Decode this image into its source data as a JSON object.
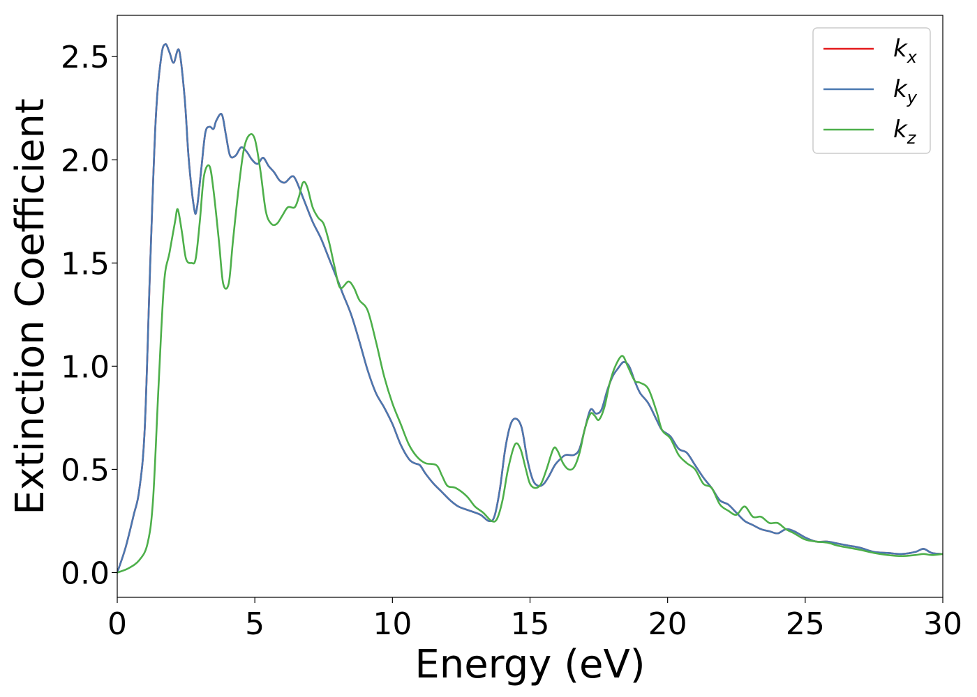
{
  "chart_data": {
    "type": "line",
    "title": "",
    "xlabel": "Energy (eV)",
    "ylabel": "Extinction Coefficient",
    "xlim": [
      0,
      30
    ],
    "ylim": [
      -0.12,
      2.7
    ],
    "xticks": [
      0,
      5,
      10,
      15,
      20,
      25,
      30
    ],
    "xtick_labels": [
      "0",
      "5",
      "10",
      "15",
      "20",
      "25",
      "30"
    ],
    "yticks": [
      0.0,
      0.5,
      1.0,
      1.5,
      2.0,
      2.5
    ],
    "ytick_labels": [
      "0.0",
      "0.5",
      "1.0",
      "1.5",
      "2.0",
      "2.5"
    ],
    "grid": false,
    "legend_position": "top-right",
    "series": [
      {
        "name": "k_x",
        "legend_base": "k",
        "legend_sub": "x",
        "color": "#e41a1c",
        "x": [
          0,
          0.3,
          0.6,
          0.8,
          1.0,
          1.2,
          1.4,
          1.6,
          1.75,
          1.9,
          2.05,
          2.25,
          2.45,
          2.6,
          2.8,
          2.9,
          3.05,
          3.2,
          3.35,
          3.5,
          3.6,
          3.8,
          3.95,
          4.1,
          4.3,
          4.5,
          4.7,
          4.9,
          5.1,
          5.3,
          5.5,
          5.7,
          5.9,
          6.1,
          6.35,
          6.5,
          6.8,
          7.1,
          7.4,
          7.7,
          8.0,
          8.2,
          8.5,
          8.8,
          9.1,
          9.4,
          9.7,
          10.0,
          10.3,
          10.6,
          10.8,
          11.0,
          11.2,
          11.5,
          11.8,
          12.1,
          12.4,
          12.8,
          13.2,
          13.5,
          13.7,
          13.9,
          14.1,
          14.3,
          14.5,
          14.7,
          14.9,
          15.1,
          15.3,
          15.5,
          15.7,
          15.9,
          16.1,
          16.3,
          16.6,
          16.8,
          17.0,
          17.2,
          17.4,
          17.6,
          17.8,
          18.0,
          18.2,
          18.4,
          18.6,
          18.8,
          19.0,
          19.3,
          19.6,
          19.8,
          20.1,
          20.4,
          20.7,
          21.0,
          21.3,
          21.6,
          21.9,
          22.2,
          22.5,
          22.8,
          23.1,
          23.4,
          23.7,
          24.0,
          24.3,
          24.6,
          25.0,
          25.4,
          25.8,
          26.2,
          26.6,
          27.0,
          27.5,
          28.0,
          28.5,
          29.0,
          29.3,
          29.6,
          30.0
        ],
        "y": [
          0.0,
          0.12,
          0.28,
          0.4,
          0.7,
          1.5,
          2.2,
          2.5,
          2.56,
          2.52,
          2.47,
          2.53,
          2.3,
          2.0,
          1.76,
          1.77,
          1.95,
          2.13,
          2.16,
          2.15,
          2.19,
          2.22,
          2.12,
          2.02,
          2.02,
          2.06,
          2.04,
          2.0,
          1.98,
          2.01,
          1.97,
          1.94,
          1.9,
          1.89,
          1.92,
          1.9,
          1.8,
          1.7,
          1.62,
          1.52,
          1.42,
          1.35,
          1.25,
          1.12,
          0.98,
          0.87,
          0.8,
          0.72,
          0.62,
          0.55,
          0.53,
          0.52,
          0.48,
          0.43,
          0.39,
          0.35,
          0.32,
          0.3,
          0.28,
          0.25,
          0.27,
          0.4,
          0.6,
          0.72,
          0.745,
          0.7,
          0.55,
          0.45,
          0.42,
          0.43,
          0.47,
          0.52,
          0.55,
          0.57,
          0.57,
          0.6,
          0.7,
          0.79,
          0.77,
          0.79,
          0.88,
          0.95,
          0.99,
          1.02,
          1.0,
          0.93,
          0.87,
          0.82,
          0.74,
          0.69,
          0.66,
          0.6,
          0.58,
          0.52,
          0.46,
          0.41,
          0.35,
          0.33,
          0.29,
          0.25,
          0.23,
          0.21,
          0.2,
          0.19,
          0.21,
          0.2,
          0.17,
          0.15,
          0.15,
          0.14,
          0.13,
          0.12,
          0.1,
          0.095,
          0.09,
          0.1,
          0.115,
          0.095,
          0.09
        ]
      },
      {
        "name": "k_y",
        "legend_base": "k",
        "legend_sub": "y",
        "color": "#4a78b0",
        "x": [
          0,
          0.3,
          0.6,
          0.8,
          1.0,
          1.2,
          1.4,
          1.6,
          1.75,
          1.9,
          2.05,
          2.25,
          2.45,
          2.6,
          2.8,
          2.9,
          3.05,
          3.2,
          3.35,
          3.5,
          3.6,
          3.8,
          3.95,
          4.1,
          4.3,
          4.5,
          4.7,
          4.9,
          5.1,
          5.3,
          5.5,
          5.7,
          5.9,
          6.1,
          6.35,
          6.5,
          6.8,
          7.1,
          7.4,
          7.7,
          8.0,
          8.2,
          8.5,
          8.8,
          9.1,
          9.4,
          9.7,
          10.0,
          10.3,
          10.6,
          10.8,
          11.0,
          11.2,
          11.5,
          11.8,
          12.1,
          12.4,
          12.8,
          13.2,
          13.5,
          13.7,
          13.9,
          14.1,
          14.3,
          14.5,
          14.7,
          14.9,
          15.1,
          15.3,
          15.5,
          15.7,
          15.9,
          16.1,
          16.3,
          16.6,
          16.8,
          17.0,
          17.2,
          17.4,
          17.6,
          17.8,
          18.0,
          18.2,
          18.4,
          18.6,
          18.8,
          19.0,
          19.3,
          19.6,
          19.8,
          20.1,
          20.4,
          20.7,
          21.0,
          21.3,
          21.6,
          21.9,
          22.2,
          22.5,
          22.8,
          23.1,
          23.4,
          23.7,
          24.0,
          24.3,
          24.6,
          25.0,
          25.4,
          25.8,
          26.2,
          26.6,
          27.0,
          27.5,
          28.0,
          28.5,
          29.0,
          29.3,
          29.6,
          30.0
        ],
        "y": [
          0.0,
          0.12,
          0.28,
          0.4,
          0.7,
          1.5,
          2.2,
          2.5,
          2.56,
          2.52,
          2.47,
          2.53,
          2.3,
          2.0,
          1.76,
          1.77,
          1.95,
          2.13,
          2.16,
          2.15,
          2.19,
          2.22,
          2.12,
          2.02,
          2.02,
          2.06,
          2.04,
          2.0,
          1.98,
          2.01,
          1.97,
          1.94,
          1.9,
          1.89,
          1.92,
          1.9,
          1.8,
          1.7,
          1.62,
          1.52,
          1.42,
          1.35,
          1.25,
          1.12,
          0.98,
          0.87,
          0.8,
          0.72,
          0.62,
          0.55,
          0.53,
          0.52,
          0.48,
          0.43,
          0.39,
          0.35,
          0.32,
          0.3,
          0.28,
          0.25,
          0.27,
          0.4,
          0.6,
          0.72,
          0.745,
          0.7,
          0.55,
          0.45,
          0.42,
          0.43,
          0.47,
          0.52,
          0.55,
          0.57,
          0.57,
          0.6,
          0.7,
          0.79,
          0.77,
          0.79,
          0.88,
          0.95,
          0.99,
          1.02,
          1.0,
          0.93,
          0.87,
          0.82,
          0.74,
          0.69,
          0.66,
          0.6,
          0.58,
          0.52,
          0.46,
          0.41,
          0.35,
          0.33,
          0.29,
          0.25,
          0.23,
          0.21,
          0.2,
          0.19,
          0.21,
          0.2,
          0.17,
          0.15,
          0.15,
          0.14,
          0.13,
          0.12,
          0.1,
          0.095,
          0.09,
          0.1,
          0.115,
          0.095,
          0.09
        ]
      },
      {
        "name": "k_z",
        "legend_base": "k",
        "legend_sub": "z",
        "color": "#4daf4a",
        "x": [
          0,
          0.4,
          0.8,
          1.1,
          1.3,
          1.5,
          1.7,
          1.9,
          2.1,
          2.2,
          2.35,
          2.5,
          2.7,
          2.85,
          3.0,
          3.15,
          3.35,
          3.5,
          3.7,
          3.85,
          4.05,
          4.2,
          4.4,
          4.6,
          4.8,
          5.0,
          5.2,
          5.4,
          5.6,
          5.8,
          6.0,
          6.2,
          6.45,
          6.6,
          6.75,
          6.9,
          7.1,
          7.3,
          7.5,
          7.7,
          7.9,
          8.1,
          8.4,
          8.6,
          8.8,
          9.1,
          9.4,
          9.7,
          10.0,
          10.3,
          10.6,
          10.9,
          11.2,
          11.6,
          11.8,
          12.0,
          12.3,
          12.7,
          13.0,
          13.3,
          13.6,
          13.8,
          14.0,
          14.2,
          14.45,
          14.65,
          14.85,
          15.0,
          15.2,
          15.4,
          15.6,
          15.85,
          16.0,
          16.2,
          16.4,
          16.6,
          16.8,
          17.0,
          17.2,
          17.35,
          17.5,
          17.7,
          17.9,
          18.1,
          18.35,
          18.55,
          18.8,
          19.0,
          19.3,
          19.6,
          19.8,
          20.1,
          20.4,
          20.7,
          21.0,
          21.3,
          21.6,
          21.9,
          22.2,
          22.5,
          22.8,
          23.1,
          23.4,
          23.7,
          24.0,
          24.3,
          24.6,
          25.0,
          25.4,
          25.8,
          26.2,
          26.6,
          27.0,
          27.5,
          28.0,
          28.5,
          29.0,
          29.3,
          29.6,
          30.0
        ],
        "y": [
          0.0,
          0.02,
          0.06,
          0.14,
          0.35,
          0.9,
          1.4,
          1.55,
          1.7,
          1.76,
          1.65,
          1.52,
          1.5,
          1.52,
          1.7,
          1.92,
          1.97,
          1.85,
          1.6,
          1.4,
          1.4,
          1.6,
          1.85,
          2.05,
          2.12,
          2.1,
          1.95,
          1.75,
          1.69,
          1.69,
          1.73,
          1.77,
          1.77,
          1.82,
          1.89,
          1.87,
          1.77,
          1.72,
          1.69,
          1.6,
          1.48,
          1.38,
          1.41,
          1.38,
          1.32,
          1.27,
          1.12,
          0.95,
          0.82,
          0.72,
          0.62,
          0.56,
          0.53,
          0.52,
          0.47,
          0.42,
          0.41,
          0.37,
          0.32,
          0.29,
          0.25,
          0.26,
          0.35,
          0.5,
          0.62,
          0.6,
          0.5,
          0.43,
          0.41,
          0.43,
          0.5,
          0.6,
          0.59,
          0.53,
          0.5,
          0.51,
          0.58,
          0.7,
          0.77,
          0.76,
          0.74,
          0.8,
          0.92,
          1.0,
          1.05,
          1.0,
          0.93,
          0.92,
          0.89,
          0.78,
          0.69,
          0.65,
          0.57,
          0.53,
          0.5,
          0.43,
          0.41,
          0.33,
          0.3,
          0.28,
          0.32,
          0.27,
          0.27,
          0.24,
          0.24,
          0.21,
          0.19,
          0.16,
          0.15,
          0.145,
          0.13,
          0.12,
          0.11,
          0.095,
          0.085,
          0.08,
          0.085,
          0.09,
          0.085,
          0.09
        ]
      }
    ]
  }
}
